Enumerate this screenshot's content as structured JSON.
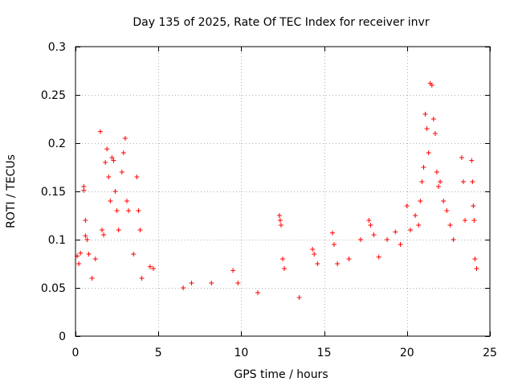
{
  "chart_data": {
    "type": "scatter",
    "title": "Day 135 of 2025, Rate Of TEC Index for receiver invr",
    "xlabel": "GPS time / hours",
    "ylabel": "ROTI / TECUs",
    "xlim": [
      0,
      25
    ],
    "ylim": [
      0,
      0.3
    ],
    "xticks": [
      0,
      5,
      10,
      15,
      20,
      25
    ],
    "xtick_labels": [
      "0",
      "5",
      "10",
      "15",
      "20",
      "25"
    ],
    "yticks": [
      0,
      0.05,
      0.1,
      0.15,
      0.2,
      0.25,
      0.3
    ],
    "ytick_labels": [
      "0",
      "0.05",
      "0.1",
      "0.15",
      "0.2",
      "0.25",
      "0.3"
    ],
    "grid": true,
    "marker": "plus",
    "color": "#ff0000",
    "series": [
      {
        "name": "ROTI",
        "points": [
          [
            0.1,
            0.083
          ],
          [
            0.2,
            0.075
          ],
          [
            0.3,
            0.086
          ],
          [
            0.5,
            0.155
          ],
          [
            0.5,
            0.151
          ],
          [
            0.6,
            0.12
          ],
          [
            0.6,
            0.104
          ],
          [
            0.7,
            0.1
          ],
          [
            0.8,
            0.085
          ],
          [
            1.0,
            0.06
          ],
          [
            1.2,
            0.08
          ],
          [
            1.5,
            0.212
          ],
          [
            1.6,
            0.11
          ],
          [
            1.7,
            0.105
          ],
          [
            1.8,
            0.18
          ],
          [
            1.9,
            0.194
          ],
          [
            2.0,
            0.165
          ],
          [
            2.1,
            0.14
          ],
          [
            2.2,
            0.185
          ],
          [
            2.3,
            0.182
          ],
          [
            2.4,
            0.15
          ],
          [
            2.5,
            0.13
          ],
          [
            2.6,
            0.11
          ],
          [
            2.8,
            0.17
          ],
          [
            2.9,
            0.19
          ],
          [
            3.0,
            0.205
          ],
          [
            3.1,
            0.14
          ],
          [
            3.2,
            0.13
          ],
          [
            3.5,
            0.085
          ],
          [
            3.7,
            0.165
          ],
          [
            3.8,
            0.13
          ],
          [
            3.9,
            0.11
          ],
          [
            4.0,
            0.06
          ],
          [
            4.5,
            0.072
          ],
          [
            4.7,
            0.07
          ],
          [
            6.5,
            0.05
          ],
          [
            7.0,
            0.055
          ],
          [
            8.2,
            0.055
          ],
          [
            9.5,
            0.068
          ],
          [
            9.8,
            0.055
          ],
          [
            11.0,
            0.045
          ],
          [
            12.3,
            0.125
          ],
          [
            12.35,
            0.12
          ],
          [
            12.4,
            0.115
          ],
          [
            12.5,
            0.08
          ],
          [
            12.6,
            0.07
          ],
          [
            13.5,
            0.04
          ],
          [
            14.3,
            0.09
          ],
          [
            14.4,
            0.085
          ],
          [
            14.6,
            0.075
          ],
          [
            15.5,
            0.107
          ],
          [
            15.6,
            0.095
          ],
          [
            15.8,
            0.075
          ],
          [
            16.5,
            0.08
          ],
          [
            17.2,
            0.1
          ],
          [
            17.7,
            0.12
          ],
          [
            17.8,
            0.115
          ],
          [
            18.0,
            0.105
          ],
          [
            18.3,
            0.082
          ],
          [
            18.8,
            0.1
          ],
          [
            19.3,
            0.108
          ],
          [
            19.6,
            0.095
          ],
          [
            20.0,
            0.135
          ],
          [
            20.2,
            0.11
          ],
          [
            20.5,
            0.125
          ],
          [
            20.7,
            0.115
          ],
          [
            20.8,
            0.14
          ],
          [
            20.9,
            0.16
          ],
          [
            21.0,
            0.175
          ],
          [
            21.1,
            0.23
          ],
          [
            21.2,
            0.215
          ],
          [
            21.3,
            0.19
          ],
          [
            21.4,
            0.262
          ],
          [
            21.5,
            0.26
          ],
          [
            21.6,
            0.225
          ],
          [
            21.7,
            0.21
          ],
          [
            21.8,
            0.17
          ],
          [
            21.9,
            0.155
          ],
          [
            22.0,
            0.16
          ],
          [
            22.2,
            0.14
          ],
          [
            22.4,
            0.13
          ],
          [
            22.6,
            0.115
          ],
          [
            22.8,
            0.1
          ],
          [
            23.3,
            0.185
          ],
          [
            23.4,
            0.16
          ],
          [
            23.5,
            0.12
          ],
          [
            23.9,
            0.182
          ],
          [
            23.95,
            0.16
          ],
          [
            24.0,
            0.135
          ],
          [
            24.05,
            0.12
          ],
          [
            24.1,
            0.08
          ],
          [
            24.2,
            0.07
          ]
        ]
      }
    ]
  }
}
